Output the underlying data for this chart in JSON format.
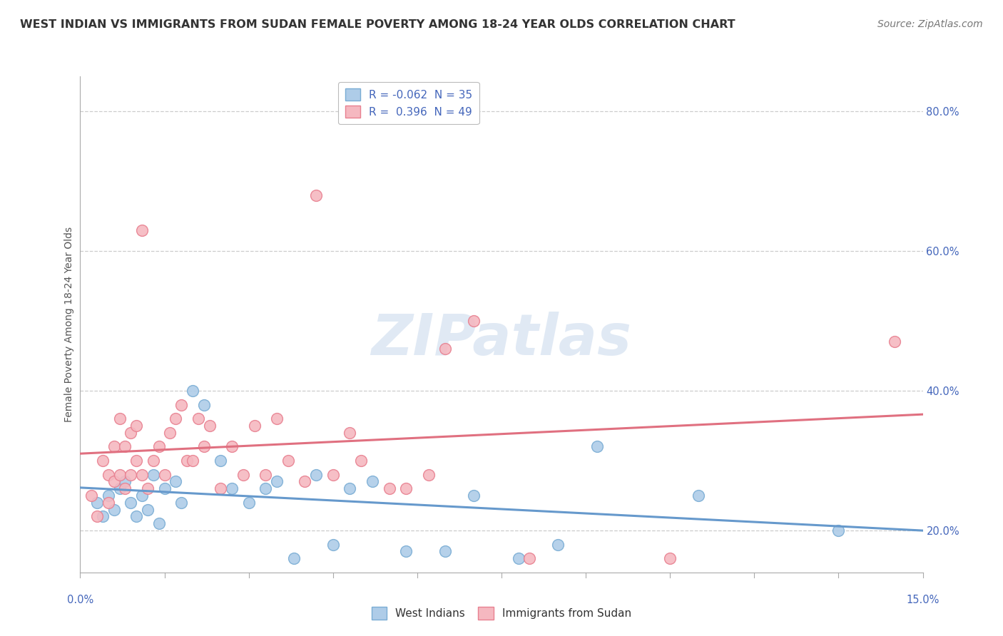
{
  "title": "WEST INDIAN VS IMMIGRANTS FROM SUDAN FEMALE POVERTY AMONG 18-24 YEAR OLDS CORRELATION CHART",
  "source": "Source: ZipAtlas.com",
  "ylabel": "Female Poverty Among 18-24 Year Olds",
  "xlim": [
    0.0,
    15.0
  ],
  "ylim": [
    14.0,
    85.0
  ],
  "yticks": [
    20.0,
    40.0,
    60.0,
    80.0
  ],
  "series1_name": "West Indians",
  "series1_color": "#aecce8",
  "series1_edge_color": "#7aadd4",
  "series1_line_color": "#6699cc",
  "series1_R": -0.062,
  "series1_N": 35,
  "series2_name": "Immigrants from Sudan",
  "series2_color": "#f5b8c0",
  "series2_edge_color": "#e88090",
  "series2_line_color": "#e07080",
  "series2_R": 0.396,
  "series2_N": 49,
  "watermark": "ZIPatlas",
  "background_color": "#ffffff",
  "grid_color": "#cccccc",
  "title_color": "#333333",
  "source_color": "#777777",
  "label_color": "#555555",
  "tick_color": "#4466bb",
  "west_indians_x": [
    0.3,
    0.4,
    0.5,
    0.6,
    0.7,
    0.8,
    0.9,
    1.0,
    1.1,
    1.2,
    1.3,
    1.4,
    1.5,
    1.7,
    1.8,
    2.0,
    2.2,
    2.5,
    2.7,
    3.0,
    3.3,
    3.5,
    3.8,
    4.2,
    4.5,
    4.8,
    5.2,
    5.8,
    6.5,
    7.0,
    7.8,
    8.5,
    9.2,
    11.0,
    13.5
  ],
  "west_indians_y": [
    24.0,
    22.0,
    25.0,
    23.0,
    26.0,
    27.0,
    24.0,
    22.0,
    25.0,
    23.0,
    28.0,
    21.0,
    26.0,
    27.0,
    24.0,
    40.0,
    38.0,
    30.0,
    26.0,
    24.0,
    26.0,
    27.0,
    16.0,
    28.0,
    18.0,
    26.0,
    27.0,
    17.0,
    17.0,
    25.0,
    16.0,
    18.0,
    32.0,
    25.0,
    20.0
  ],
  "sudan_x": [
    0.2,
    0.3,
    0.4,
    0.5,
    0.5,
    0.6,
    0.6,
    0.7,
    0.7,
    0.8,
    0.8,
    0.9,
    0.9,
    1.0,
    1.0,
    1.1,
    1.1,
    1.2,
    1.3,
    1.4,
    1.5,
    1.6,
    1.7,
    1.8,
    1.9,
    2.0,
    2.1,
    2.2,
    2.3,
    2.5,
    2.7,
    2.9,
    3.1,
    3.3,
    3.5,
    3.7,
    4.0,
    4.2,
    4.5,
    4.8,
    5.0,
    5.5,
    5.8,
    6.2,
    6.5,
    7.0,
    8.0,
    10.5,
    14.5
  ],
  "sudan_y": [
    25.0,
    22.0,
    30.0,
    28.0,
    24.0,
    32.0,
    27.0,
    28.0,
    36.0,
    26.0,
    32.0,
    34.0,
    28.0,
    30.0,
    35.0,
    63.0,
    28.0,
    26.0,
    30.0,
    32.0,
    28.0,
    34.0,
    36.0,
    38.0,
    30.0,
    30.0,
    36.0,
    32.0,
    35.0,
    26.0,
    32.0,
    28.0,
    35.0,
    28.0,
    36.0,
    30.0,
    27.0,
    68.0,
    28.0,
    34.0,
    30.0,
    26.0,
    26.0,
    28.0,
    46.0,
    50.0,
    16.0,
    16.0,
    47.0
  ],
  "title_fontsize": 11.5,
  "source_fontsize": 10,
  "axis_label_fontsize": 10,
  "tick_fontsize": 10.5,
  "legend_fontsize": 11
}
